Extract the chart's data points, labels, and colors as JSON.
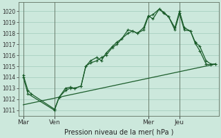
{
  "title": "Pression niveau de la mer( hPa )",
  "bg_color": "#cce8dc",
  "grid_color": "#a8cfc0",
  "line_color": "#1a5c2a",
  "ylim": [
    1010.5,
    1020.8
  ],
  "yticks": [
    1011,
    1012,
    1013,
    1014,
    1015,
    1016,
    1017,
    1018,
    1019,
    1020
  ],
  "xtick_labels": [
    "Mar",
    "Ven",
    "Mer",
    "Jeu"
  ],
  "xtick_positions": [
    0,
    2,
    8,
    10
  ],
  "vline_positions": [
    0,
    2,
    8,
    10
  ],
  "xlim": [
    -0.3,
    12.5
  ],
  "series1_x": [
    0,
    0.3,
    0.5,
    2.0,
    2.3,
    2.7,
    3.0,
    3.3,
    3.7,
    4.0,
    4.3,
    4.7,
    5.0,
    5.3,
    5.7,
    6.0,
    6.3,
    6.7,
    7.0,
    7.3,
    7.7,
    8.0,
    8.3,
    8.7,
    9.0,
    9.3,
    9.7,
    10.0,
    10.3,
    10.7,
    11.0,
    11.3,
    11.7,
    12.0,
    12.3
  ],
  "series1_y": [
    1014.2,
    1012.8,
    1012.5,
    1011.1,
    1012.2,
    1013.0,
    1013.1,
    1013.0,
    1013.2,
    1015.0,
    1015.5,
    1015.8,
    1015.5,
    1016.2,
    1016.8,
    1017.2,
    1017.5,
    1018.3,
    1018.2,
    1018.0,
    1018.3,
    1019.5,
    1019.7,
    1020.2,
    1019.8,
    1019.5,
    1018.3,
    1019.8,
    1018.3,
    1018.2,
    1017.1,
    1016.4,
    1015.2,
    1015.1,
    1015.2
  ],
  "series2_x": [
    0,
    0.3,
    2.0,
    2.3,
    2.7,
    3.0,
    3.3,
    3.7,
    4.0,
    4.3,
    4.7,
    5.0,
    5.3,
    5.7,
    6.0,
    6.3,
    6.7,
    7.0,
    7.3,
    7.7,
    8.0,
    8.3,
    8.7,
    9.0,
    9.3,
    9.7,
    10.0,
    10.3,
    10.7,
    11.0,
    11.3,
    11.7,
    12.0,
    12.3
  ],
  "series2_y": [
    1014.0,
    1012.5,
    1011.0,
    1012.2,
    1012.8,
    1013.0,
    1013.0,
    1013.2,
    1015.0,
    1015.3,
    1015.5,
    1015.8,
    1016.0,
    1016.7,
    1017.0,
    1017.5,
    1018.0,
    1018.2,
    1018.0,
    1018.5,
    1019.6,
    1019.3,
    1020.2,
    1019.9,
    1019.5,
    1018.5,
    1020.0,
    1018.5,
    1018.2,
    1017.2,
    1016.8,
    1015.5,
    1015.2,
    1015.2
  ],
  "series3_x": [
    0,
    12.3
  ],
  "series3_y": [
    1011.5,
    1015.2
  ]
}
